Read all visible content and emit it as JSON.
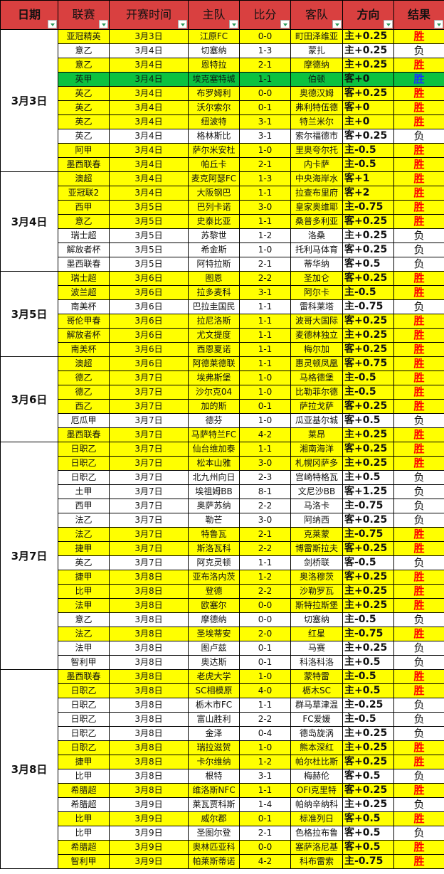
{
  "colors": {
    "header": "#d94040",
    "highlight": "#ffff00",
    "special": "#0cc240",
    "win": "#ff0000",
    "special_win": "#1a2fff"
  },
  "headers": [
    "日期",
    "联赛",
    "开赛时间",
    "主队",
    "比分",
    "客队",
    "方向",
    "结果"
  ],
  "groups": [
    {
      "date": "3月3日",
      "rows": [
        [
          "亚冠精英",
          "3月3日",
          "江原FC",
          "0-0",
          "町田泽维亚",
          "主+0.25",
          "胜",
          "Y"
        ],
        [
          "意乙",
          "3月4日",
          "切塞纳",
          "1-3",
          "蒙扎",
          "主+0.25",
          "负",
          "W"
        ],
        [
          "意乙",
          "3月4日",
          "恩特拉",
          "2-1",
          "摩德纳",
          "主+0.25",
          "胜",
          "Y"
        ],
        [
          "英甲",
          "3月4日",
          "埃克塞特城",
          "1-1",
          "伯顿",
          "客+0",
          "胜",
          "G"
        ],
        [
          "英乙",
          "3月4日",
          "布罗姆利",
          "0-0",
          "奥德汉姆",
          "客+0.25",
          "胜",
          "Y"
        ],
        [
          "英乙",
          "3月4日",
          "沃尔索尔",
          "0-1",
          "弗利特伍德",
          "客+0",
          "胜",
          "Y"
        ],
        [
          "英乙",
          "3月4日",
          "纽波特",
          "3-1",
          "特兰米尔",
          "主+0",
          "胜",
          "Y"
        ],
        [
          "英乙",
          "3月4日",
          "格林斯比",
          "3-1",
          "索尔福德市",
          "客+0.25",
          "负",
          "W"
        ],
        [
          "阿甲",
          "3月4日",
          "萨尔米安杜",
          "1-0",
          "里奥夸尔托",
          "主-0.5",
          "胜",
          "Y"
        ],
        [
          "墨西联春",
          "3月4日",
          "帕丘卡",
          "2-1",
          "内卡萨",
          "主-0.5",
          "胜",
          "Y"
        ]
      ]
    },
    {
      "date": "3月4日",
      "rows": [
        [
          "澳超",
          "3月4日",
          "麦克阿瑟FC",
          "1-3",
          "中央海岸水",
          "客+1",
          "胜",
          "Y"
        ],
        [
          "亚冠联2",
          "3月4日",
          "大阪钢巴",
          "1-1",
          "拉查布里府",
          "客+2",
          "胜",
          "Y"
        ],
        [
          "西甲",
          "3月5日",
          "巴列卡诺",
          "3-0",
          "皇家奥维耶",
          "主-0.75",
          "胜",
          "Y"
        ],
        [
          "意乙",
          "3月5日",
          "史泰比亚",
          "1-1",
          "桑普多利亚",
          "客+0.25",
          "胜",
          "Y"
        ],
        [
          "瑞士超",
          "3月5日",
          "苏黎世",
          "1-2",
          "洛桑",
          "主+0.25",
          "负",
          "W"
        ],
        [
          "解放者杯",
          "3月5日",
          "希金斯",
          "1-0",
          "托利马体育",
          "客+0.25",
          "负",
          "W"
        ],
        [
          "墨西联春",
          "3月5日",
          "阿特拉斯",
          "2-1",
          "蒂华纳",
          "客+0.5",
          "负",
          "W"
        ]
      ]
    },
    {
      "date": "3月5日",
      "rows": [
        [
          "瑞士超",
          "3月6日",
          "图恩",
          "2-2",
          "圣加仑",
          "客+0.25",
          "胜",
          "Y"
        ],
        [
          "波兰超",
          "3月6日",
          "拉多麦科",
          "3-1",
          "阿尔卡",
          "主-0.5",
          "胜",
          "Y"
        ],
        [
          "南美杯",
          "3月6日",
          "巴拉圭国民",
          "1-1",
          "雷科莱塔",
          "主-0.75",
          "负",
          "W"
        ],
        [
          "哥伦甲春",
          "3月6日",
          "拉尼洛斯",
          "1-1",
          "波哥大国际",
          "客+0.25",
          "胜",
          "Y"
        ],
        [
          "解放者杯",
          "3月6日",
          "尤文提度",
          "1-1",
          "麦德林独立",
          "主+0.25",
          "胜",
          "Y"
        ],
        [
          "南美杯",
          "3月6日",
          "西恩夏诺",
          "1-1",
          "梅尔加",
          "客+0.25",
          "胜",
          "Y"
        ]
      ]
    },
    {
      "date": "3月6日",
      "rows": [
        [
          "澳超",
          "3月6日",
          "阿德莱德联",
          "1-1",
          "惠灵顿凤凰",
          "客+0.75",
          "胜",
          "Y"
        ],
        [
          "德乙",
          "3月7日",
          "埃弗斯堡",
          "1-0",
          "马格德堡",
          "主-0.5",
          "胜",
          "Y"
        ],
        [
          "德乙",
          "3月7日",
          "沙尔克04",
          "1-0",
          "比勒菲尔德",
          "主-0.5",
          "胜",
          "Y"
        ],
        [
          "西乙",
          "3月7日",
          "加的斯",
          "0-1",
          "萨拉戈萨",
          "客+0.25",
          "胜",
          "Y"
        ],
        [
          "厄瓜甲",
          "3月7日",
          "德芬",
          "1-0",
          "瓜亚基尔城",
          "客+0.5",
          "负",
          "W"
        ],
        [
          "墨西联春",
          "3月7日",
          "马萨特兰FC",
          "4-2",
          "莱昂",
          "主+0.25",
          "胜",
          "Y"
        ]
      ]
    },
    {
      "date": "3月7日",
      "rows": [
        [
          "日职乙",
          "3月7日",
          "仙台维加泰",
          "1-1",
          "湘南海洋",
          "客+0.25",
          "胜",
          "Y"
        ],
        [
          "日职乙",
          "3月7日",
          "松本山雅",
          "3-0",
          "札幌冈萨多",
          "主+0.25",
          "胜",
          "Y"
        ],
        [
          "日职乙",
          "3月7日",
          "北九州向日",
          "2-3",
          "宫崎特格瓦",
          "主+0.5",
          "负",
          "W"
        ],
        [
          "土甲",
          "3月7日",
          "埃祖姆BB",
          "8-1",
          "文尼沙BB",
          "客+1.25",
          "负",
          "W"
        ],
        [
          "西甲",
          "3月7日",
          "奥萨苏纳",
          "2-2",
          "马洛卡",
          "主-0.75",
          "负",
          "W"
        ],
        [
          "法乙",
          "3月7日",
          "勒芒",
          "3-0",
          "阿纳西",
          "客+0.25",
          "负",
          "W"
        ],
        [
          "法乙",
          "3月7日",
          "特鲁瓦",
          "2-1",
          "克莱蒙",
          "主-0.75",
          "胜",
          "Y"
        ],
        [
          "捷甲",
          "3月7日",
          "斯洛瓦科",
          "2-2",
          "博雷斯拉夫",
          "客+0.25",
          "胜",
          "Y"
        ],
        [
          "英乙",
          "3月7日",
          "阿克灵顿",
          "1-1",
          "剑桥联",
          "客-0.5",
          "负",
          "W"
        ],
        [
          "捷甲",
          "3月8日",
          "亚布洛内茨",
          "1-2",
          "奥洛穆茨",
          "客+0.25",
          "胜",
          "Y"
        ],
        [
          "比甲",
          "3月8日",
          "登德",
          "2-2",
          "沙勒罗瓦",
          "主+0.25",
          "胜",
          "Y"
        ],
        [
          "法甲",
          "3月8日",
          "欧塞尔",
          "0-0",
          "斯特拉斯堡",
          "主+0.25",
          "胜",
          "Y"
        ],
        [
          "意乙",
          "3月8日",
          "摩德纳",
          "0-0",
          "切塞纳",
          "主-0.5",
          "负",
          "W"
        ],
        [
          "法乙",
          "3月8日",
          "圣埃蒂安",
          "2-0",
          "红星",
          "主-0.75",
          "胜",
          "Y"
        ],
        [
          "法甲",
          "3月8日",
          "图卢兹",
          "0-1",
          "马赛",
          "主+0.25",
          "负",
          "W"
        ],
        [
          "智利甲",
          "3月8日",
          "奥达斯",
          "0-1",
          "科洛科洛",
          "主+0.5",
          "负",
          "W"
        ]
      ]
    },
    {
      "date": "3月8日",
      "rows": [
        [
          "墨西联春",
          "3月8日",
          "老虎大学",
          "1-0",
          "蒙特雷",
          "主-0.5",
          "胜",
          "Y"
        ],
        [
          "日职乙",
          "3月8日",
          "SC相模原",
          "4-0",
          "枥木SC",
          "主+0.5",
          "胜",
          "Y"
        ],
        [
          "日职乙",
          "3月8日",
          "栃木市FC",
          "1-1",
          "群马草津温",
          "主-0.25",
          "负",
          "W"
        ],
        [
          "日职乙",
          "3月8日",
          "富山胜利",
          "2-2",
          "FC爱媛",
          "主-0.5",
          "负",
          "W"
        ],
        [
          "日职乙",
          "3月8日",
          "金泽",
          "0-4",
          "德岛旋涡",
          "主+0.25",
          "负",
          "W"
        ],
        [
          "日职乙",
          "3月8日",
          "瑞拉滋贺",
          "1-0",
          "熊本深红",
          "主+0.25",
          "胜",
          "Y"
        ],
        [
          "捷甲",
          "3月8日",
          "卡尔维纳",
          "1-2",
          "帕尔杜比斯",
          "客+0.25",
          "胜",
          "Y"
        ],
        [
          "比甲",
          "3月8日",
          "根特",
          "3-1",
          "梅赫伦",
          "客+0.5",
          "负",
          "W"
        ],
        [
          "希腊超",
          "3月8日",
          "维洛斯NFC",
          "1-1",
          "OFI克里特",
          "客+0.25",
          "胜",
          "Y"
        ],
        [
          "希腊超",
          "3月9日",
          "莱瓦贾科斯",
          "1-4",
          "帕纳辛纳科",
          "主+0.25",
          "负",
          "W"
        ],
        [
          "比甲",
          "3月9日",
          "威尔郡",
          "0-1",
          "标准列日",
          "客+0.5",
          "胜",
          "Y"
        ],
        [
          "比甲",
          "3月9日",
          "圣图尔登",
          "2-1",
          "色格拉布鲁",
          "客+0.5",
          "负",
          "W"
        ],
        [
          "希腊超",
          "3月9日",
          "奥林匹亚科",
          "0-0",
          "塞萨洛尼基",
          "客+0.5",
          "胜",
          "Y"
        ],
        [
          "智利甲",
          "3月9日",
          "帕莱斯蒂诺",
          "4-2",
          "科布雷索",
          "主-0.75",
          "胜",
          "Y"
        ]
      ]
    }
  ]
}
